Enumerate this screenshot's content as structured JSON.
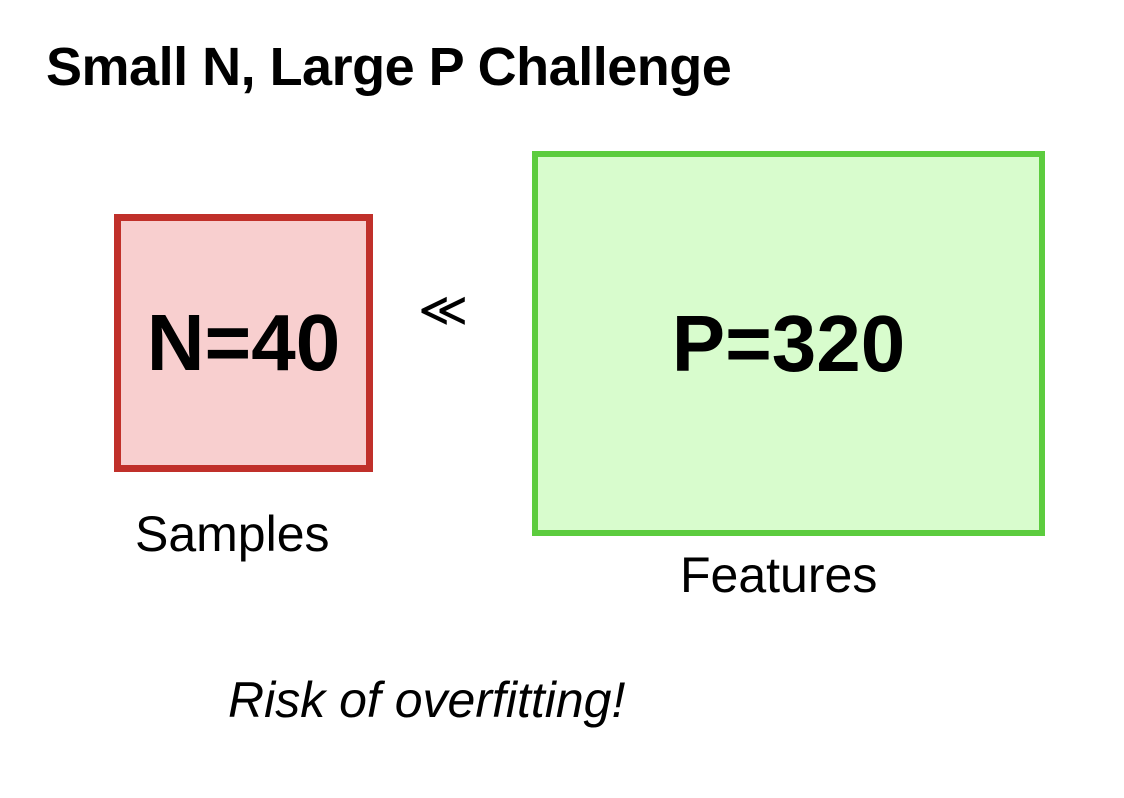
{
  "title": "Small N, Large P Challenge",
  "samples": {
    "value_label": "N=40",
    "caption": "Samples",
    "fill_color": "#f8cfcf",
    "border_color": "#c0302a"
  },
  "relation": "≪",
  "features": {
    "value_label": "P=320",
    "caption": "Features",
    "fill_color": "#d8fccd",
    "border_color": "#5ccc3e"
  },
  "note": "Risk of overfitting!"
}
